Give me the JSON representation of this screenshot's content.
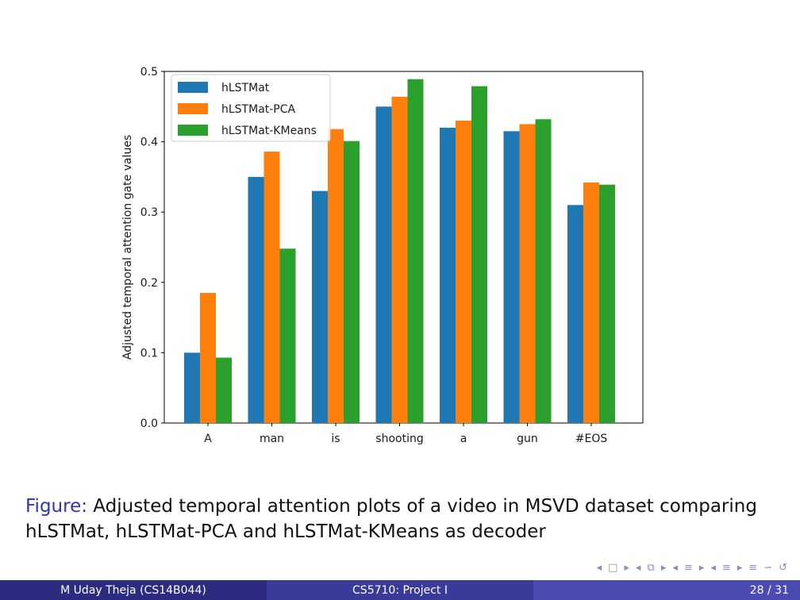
{
  "chart_data": {
    "type": "bar",
    "categories": [
      "A",
      "man",
      "is",
      "shooting",
      "a",
      "gun",
      "#EOS"
    ],
    "series": [
      {
        "name": "hLSTMat",
        "color": "#1f77b4",
        "values": [
          0.1,
          0.35,
          0.33,
          0.45,
          0.42,
          0.415,
          0.31
        ]
      },
      {
        "name": "hLSTMat-PCA",
        "color": "#ff7f0e",
        "values": [
          0.185,
          0.386,
          0.418,
          0.464,
          0.43,
          0.425,
          0.342
        ]
      },
      {
        "name": "hLSTMat-KMeans",
        "color": "#2ca02c",
        "values": [
          0.093,
          0.248,
          0.401,
          0.489,
          0.479,
          0.432,
          0.339
        ]
      }
    ],
    "ylabel": "Adjusted temporal attention gate values",
    "xlabel": "",
    "ylim": [
      0.0,
      0.5
    ],
    "yticks": [
      "0.0",
      "0.1",
      "0.2",
      "0.3",
      "0.4",
      "0.5"
    ],
    "legend": "top-left",
    "grid": false
  },
  "caption": {
    "label": "Figure:",
    "text": "Adjusted temporal attention plots of a video in MSVD dataset comparing hLSTMat, hLSTMat-PCA and hLSTMat-KMeans as decoder"
  },
  "footer": {
    "author": "M Uday Theja  (CS14B044)",
    "title": "CS5710: Project I",
    "page": "28 / 31"
  }
}
